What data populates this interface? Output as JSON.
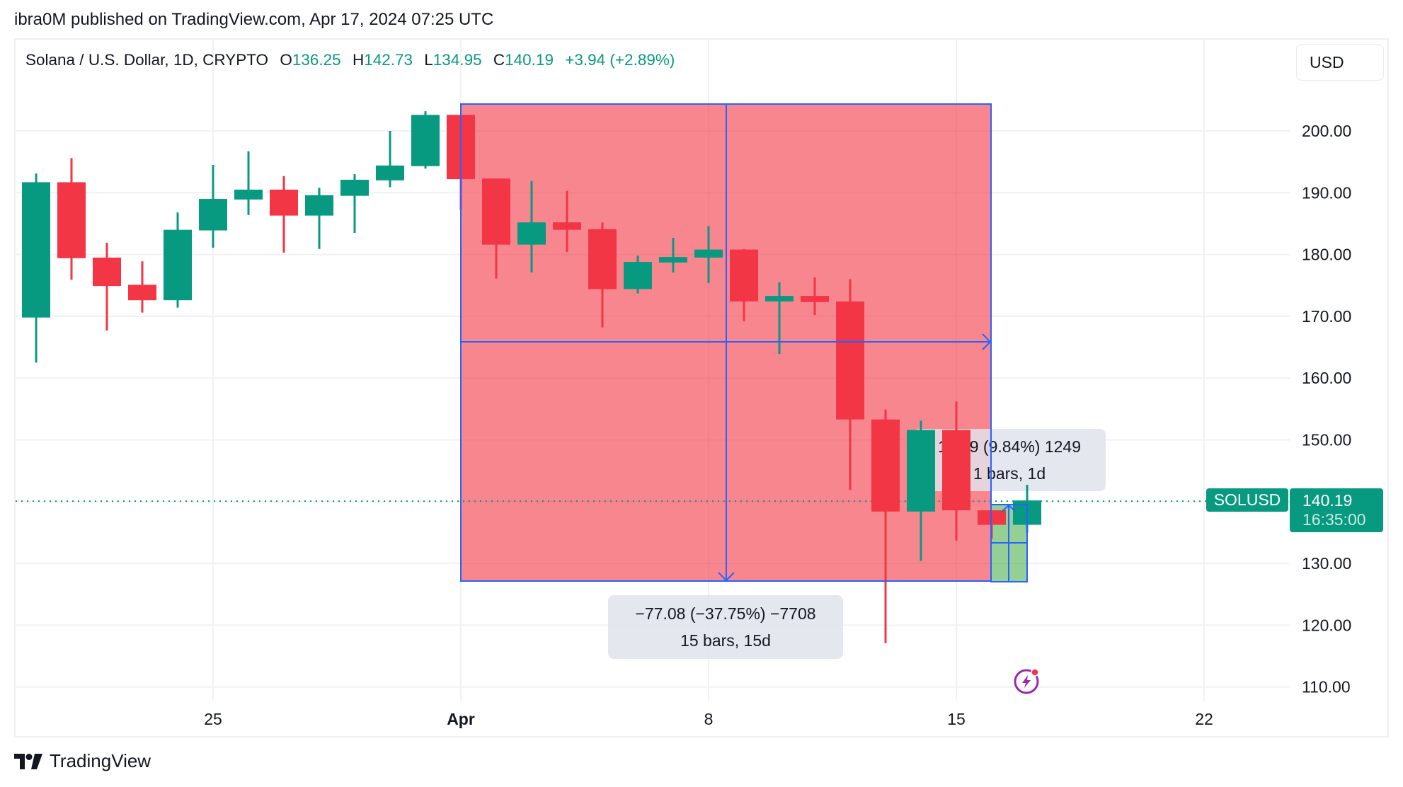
{
  "header": {
    "published_line": "ibra0M published on TradingView.com, Apr 17, 2024 07:25 UTC"
  },
  "legend": {
    "symbol_desc": "Solana / U.S. Dollar, 1D, CRYPTO",
    "open_key": "O",
    "open": "136.25",
    "high_key": "H",
    "high": "142.73",
    "low_key": "L",
    "low": "134.95",
    "close_key": "C",
    "close": "140.19",
    "change": "+3.94 (+2.89%)"
  },
  "currency_button": "USD",
  "price_axis": {
    "labels": [
      "200.00",
      "190.00",
      "180.00",
      "170.00",
      "160.00",
      "150.00",
      "140.00",
      "130.00",
      "120.00",
      "110.00"
    ],
    "hidden": [
      "140.00"
    ]
  },
  "time_axis": {
    "labels": [
      {
        "text": "25",
        "bold": false,
        "bar": 5
      },
      {
        "text": "Apr",
        "bold": true,
        "bar": 12
      },
      {
        "text": "8",
        "bold": false,
        "bar": 19
      },
      {
        "text": "15",
        "bold": false,
        "bar": 26
      },
      {
        "text": "22",
        "bold": false,
        "bar": 33
      }
    ]
  },
  "last_price": {
    "symbol_tag": "SOLUSD",
    "price": "140.19",
    "countdown": "16:35:00"
  },
  "measure_main": {
    "line1": "−77.08 (−37.75%) −7708",
    "line2": "15 bars, 15d"
  },
  "measure_small": {
    "line1": "12.49 (9.84%) 1249",
    "line2": "1 bars, 1d"
  },
  "footer": {
    "brand": "TradingView"
  },
  "colors": {
    "up": "#089981",
    "down": "#f23645",
    "measure_down_fill": "rgba(242,54,69,0.6)",
    "measure_up_fill": "rgba(76,175,80,0.6)",
    "measure_line": "#2962ff",
    "grid": "#f0f1f3"
  },
  "chart_data": {
    "type": "candlestick",
    "title": "Solana / U.S. Dollar, 1D, CRYPTO",
    "xlabel": "",
    "ylabel": "USD",
    "ylim": [
      106,
      209
    ],
    "grid": true,
    "x": [
      "Mar 20",
      "Mar 21",
      "Mar 22",
      "Mar 23",
      "Mar 24",
      "Mar 25",
      "Mar 26",
      "Mar 27",
      "Mar 28",
      "Mar 29",
      "Mar 30",
      "Mar 31",
      "Apr 1",
      "Apr 2",
      "Apr 3",
      "Apr 4",
      "Apr 5",
      "Apr 6",
      "Apr 7",
      "Apr 8",
      "Apr 9",
      "Apr 10",
      "Apr 11",
      "Apr 12",
      "Apr 13",
      "Apr 14",
      "Apr 15",
      "Apr 16",
      "Apr 17"
    ],
    "open": [
      169.8,
      191.7,
      179.5,
      175.1,
      172.6,
      183.9,
      188.9,
      190.5,
      186.3,
      189.5,
      192.0,
      194.3,
      202.6,
      192.3,
      181.6,
      185.2,
      184.1,
      174.4,
      178.7,
      179.5,
      180.8,
      172.4,
      173.3,
      172.4,
      153.3,
      138.4,
      151.6,
      138.6,
      136.25
    ],
    "high": [
      193.1,
      195.6,
      181.9,
      178.9,
      186.8,
      194.5,
      196.7,
      192.7,
      190.8,
      193.0,
      200.0,
      203.2,
      202.6,
      192.3,
      191.9,
      190.3,
      185.2,
      179.8,
      182.7,
      184.6,
      180.9,
      175.5,
      176.3,
      176.0,
      154.9,
      153.1,
      156.2,
      138.6,
      142.73
    ],
    "low": [
      162.5,
      175.9,
      167.7,
      170.6,
      171.4,
      181.1,
      186.4,
      180.3,
      180.9,
      183.5,
      190.9,
      193.9,
      187.2,
      176.1,
      177.1,
      180.4,
      168.2,
      173.7,
      177.1,
      175.4,
      169.2,
      163.9,
      170.2,
      141.9,
      117.1,
      130.4,
      133.7,
      134.0,
      134.95
    ],
    "close": [
      191.7,
      179.4,
      174.9,
      172.6,
      184.0,
      189.0,
      190.5,
      186.3,
      189.6,
      192.1,
      194.4,
      202.6,
      192.2,
      181.6,
      185.2,
      184.0,
      174.4,
      178.8,
      179.6,
      180.8,
      172.4,
      173.3,
      172.3,
      153.3,
      138.4,
      151.6,
      138.6,
      136.25,
      140.19
    ],
    "last_price": 140.19,
    "annotations": [
      {
        "type": "price_range_measure",
        "from_bar": 12,
        "to_bar": 27,
        "from_price": 204.3,
        "to_price": 127.2,
        "label": "−77.08 (−37.75%) −7708 / 15 bars, 15d"
      },
      {
        "type": "price_range_measure",
        "from_bar": 27,
        "to_bar": 28,
        "from_price": 127.0,
        "to_price": 139.5,
        "label": "12.49 (9.84%) 1249 / 1 bars, 1d"
      }
    ]
  }
}
